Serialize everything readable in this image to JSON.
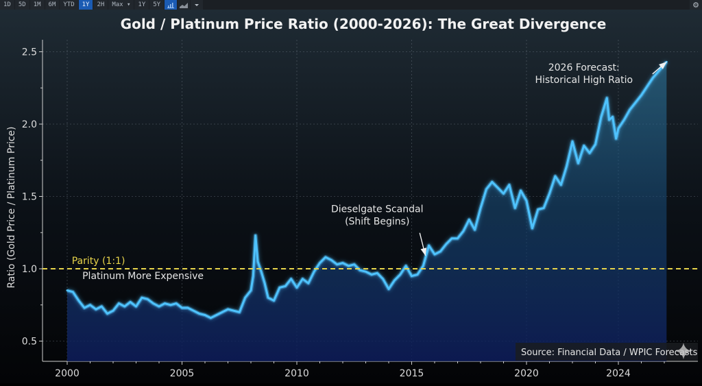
{
  "toolbar": {
    "buttons": [
      {
        "label": "1D",
        "active": false
      },
      {
        "label": "5D",
        "active": false
      },
      {
        "label": "1M",
        "active": false
      },
      {
        "label": "6M",
        "active": false
      },
      {
        "label": "YTD",
        "active": false
      },
      {
        "label": "1Y",
        "active": true
      },
      {
        "label": "2H",
        "active": false
      },
      {
        "label": "Max ▾",
        "active": false
      },
      {
        "label": "1Y",
        "active": false
      },
      {
        "label": "5Y",
        "active": false
      }
    ],
    "icons": [
      {
        "name": "bar-chart-icon",
        "active": true
      },
      {
        "name": "line-chart-icon",
        "active": false
      },
      {
        "name": "dropdown-caret-icon",
        "active": false
      }
    ],
    "settings_icon": "gear-icon"
  },
  "colors": {
    "line": "#4fc3ff",
    "parity": "#e8d44a",
    "background_top": "#1e2a33",
    "background_bottom": "#050608",
    "fill": "#1a4a7a",
    "text": "#e6e6e6",
    "active_button": "#1b5bb3"
  },
  "chart_data": {
    "type": "area",
    "title": "Gold / Platinum Price Ratio (2000-2026): The Great Divergence",
    "xlabel": "",
    "ylabel": "Ratio (Gold Price / Platinum Price)",
    "xlim": [
      2000,
      2026.5
    ],
    "ylim": [
      0.4,
      2.6
    ],
    "xticks": [
      2000,
      2005,
      2010,
      2015,
      2020,
      2024
    ],
    "yticks": [
      0.5,
      1.0,
      1.5,
      2.0,
      2.5
    ],
    "grid": true,
    "reference_line": {
      "y": 1.0,
      "label": "Parity (1:1)",
      "style": "dashed"
    },
    "annotations": [
      {
        "text": "Platinum More Expensive",
        "x": 2003.3,
        "y": 0.93
      },
      {
        "text": "Dieselgate Scandal\n(Shift Begins)",
        "x": 2013.5,
        "y": 1.39,
        "arrow_to": [
          2015.6,
          1.09
        ]
      },
      {
        "text": "2026 Forecast:\nHistorical High Ratio",
        "x": 2022.5,
        "y": 2.37,
        "arrow_to": [
          2026.1,
          2.43
        ]
      }
    ],
    "source": "Source: Financial Data / WPIC Forecasts",
    "series": [
      {
        "name": "Gold / Platinum Ratio",
        "x": [
          2000.0,
          2000.25,
          2000.5,
          2000.75,
          2001.0,
          2001.25,
          2001.5,
          2001.75,
          2002.0,
          2002.25,
          2002.5,
          2002.75,
          2003.0,
          2003.25,
          2003.5,
          2003.75,
          2004.0,
          2004.25,
          2004.5,
          2004.75,
          2005.0,
          2005.25,
          2005.5,
          2005.75,
          2006.0,
          2006.25,
          2006.5,
          2006.75,
          2007.0,
          2007.25,
          2007.5,
          2007.75,
          2008.0,
          2008.1,
          2008.2,
          2008.3,
          2008.45,
          2008.6,
          2008.75,
          2009.0,
          2009.25,
          2009.5,
          2009.75,
          2010.0,
          2010.25,
          2010.5,
          2010.75,
          2011.0,
          2011.25,
          2011.5,
          2011.75,
          2012.0,
          2012.25,
          2012.5,
          2012.75,
          2013.0,
          2013.25,
          2013.5,
          2013.75,
          2014.0,
          2014.25,
          2014.5,
          2014.75,
          2015.0,
          2015.25,
          2015.5,
          2015.75,
          2016.0,
          2016.25,
          2016.5,
          2016.75,
          2017.0,
          2017.25,
          2017.5,
          2017.75,
          2018.0,
          2018.25,
          2018.5,
          2018.75,
          2019.0,
          2019.25,
          2019.5,
          2019.75,
          2020.0,
          2020.25,
          2020.5,
          2020.75,
          2021.0,
          2021.25,
          2021.5,
          2021.75,
          2022.0,
          2022.25,
          2022.5,
          2022.75,
          2023.0,
          2023.25,
          2023.5,
          2023.6,
          2023.75,
          2023.9,
          2024.0,
          2024.25,
          2024.5,
          2025.0,
          2025.5,
          2026.1
        ],
        "values": [
          0.85,
          0.84,
          0.78,
          0.73,
          0.75,
          0.72,
          0.74,
          0.69,
          0.71,
          0.76,
          0.74,
          0.77,
          0.74,
          0.8,
          0.79,
          0.76,
          0.74,
          0.76,
          0.75,
          0.76,
          0.73,
          0.73,
          0.71,
          0.69,
          0.68,
          0.66,
          0.68,
          0.7,
          0.72,
          0.71,
          0.7,
          0.8,
          0.85,
          0.95,
          1.23,
          1.05,
          0.98,
          0.9,
          0.8,
          0.78,
          0.87,
          0.88,
          0.93,
          0.87,
          0.93,
          0.9,
          0.98,
          1.04,
          1.08,
          1.06,
          1.03,
          1.04,
          1.02,
          1.03,
          0.99,
          0.98,
          0.96,
          0.97,
          0.93,
          0.86,
          0.92,
          0.96,
          1.02,
          0.95,
          0.96,
          1.02,
          1.16,
          1.1,
          1.12,
          1.17,
          1.21,
          1.21,
          1.26,
          1.34,
          1.27,
          1.42,
          1.55,
          1.6,
          1.56,
          1.52,
          1.58,
          1.42,
          1.54,
          1.47,
          1.28,
          1.41,
          1.42,
          1.52,
          1.64,
          1.58,
          1.71,
          1.88,
          1.73,
          1.85,
          1.8,
          1.86,
          2.05,
          2.18,
          2.03,
          2.05,
          1.9,
          1.97,
          2.03,
          2.1,
          2.2,
          2.32,
          2.43
        ]
      }
    ]
  }
}
